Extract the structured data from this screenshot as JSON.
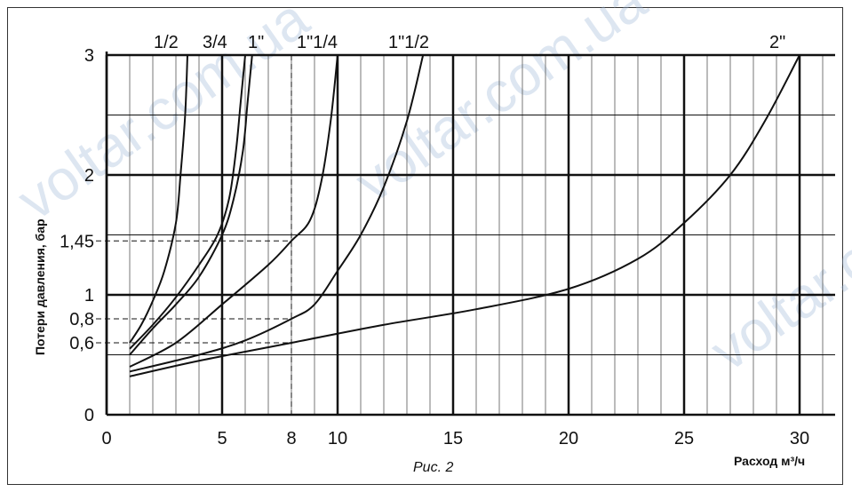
{
  "chart_data": {
    "type": "line",
    "xlabel": "Расход м³/ч",
    "ylabel": "Потери давления, бар",
    "caption": "Рис. 2",
    "xlim": [
      0,
      32
    ],
    "ylim": [
      0,
      3
    ],
    "x_ticks": [
      "0",
      "5",
      "8",
      "10",
      "15",
      "20",
      "25",
      "30"
    ],
    "x_tick_values": [
      0,
      5,
      8,
      10,
      15,
      20,
      25,
      30
    ],
    "y_ticks": [
      "0",
      "0,6",
      "0,8",
      "1",
      "1,45",
      "2",
      "3"
    ],
    "y_tick_values": [
      0,
      0.6,
      0.8,
      1,
      1.45,
      2,
      3
    ],
    "reference_lines": [
      {
        "x": 8,
        "y": 1.45
      },
      {
        "x": 8,
        "y": 0.8
      },
      {
        "x": 8,
        "y": 0.6
      }
    ],
    "series": [
      {
        "name": "1/2",
        "x": [
          1,
          1.5,
          2,
          2.5,
          3,
          3.2,
          3.4,
          3.5
        ],
        "y": [
          0.6,
          0.75,
          0.95,
          1.2,
          1.6,
          2.0,
          2.5,
          3.0
        ]
      },
      {
        "name": "3/4",
        "x": [
          1,
          2,
          3,
          4,
          4.8,
          5.3,
          5.6,
          5.8,
          6.0
        ],
        "y": [
          0.55,
          0.75,
          0.98,
          1.25,
          1.5,
          1.8,
          2.2,
          2.6,
          3.0
        ]
      },
      {
        "name": "1\"",
        "x": [
          1,
          2,
          3,
          4,
          5,
          5.5,
          5.9,
          6.1,
          6.3
        ],
        "y": [
          0.5,
          0.72,
          0.92,
          1.15,
          1.5,
          1.8,
          2.2,
          2.6,
          3.0
        ]
      },
      {
        "name": "1\"1/4",
        "x": [
          1,
          3,
          5,
          7,
          8,
          8.8,
          9.3,
          9.7,
          10.0
        ],
        "y": [
          0.4,
          0.6,
          0.92,
          1.25,
          1.45,
          1.62,
          1.95,
          2.45,
          3.0
        ]
      },
      {
        "name": "1\"1/2",
        "x": [
          1,
          4,
          6,
          8,
          9,
          10,
          11,
          12,
          13,
          13.7
        ],
        "y": [
          0.36,
          0.5,
          0.62,
          0.8,
          0.92,
          1.2,
          1.5,
          1.9,
          2.45,
          3.0
        ]
      },
      {
        "name": "2\"",
        "x": [
          1,
          4,
          8,
          12,
          16,
          20,
          23,
          25,
          27,
          28.5,
          30
        ],
        "y": [
          0.32,
          0.45,
          0.6,
          0.75,
          0.88,
          1.05,
          1.3,
          1.6,
          2.0,
          2.45,
          3.0
        ]
      }
    ]
  },
  "watermark": "voltar.com.ua"
}
